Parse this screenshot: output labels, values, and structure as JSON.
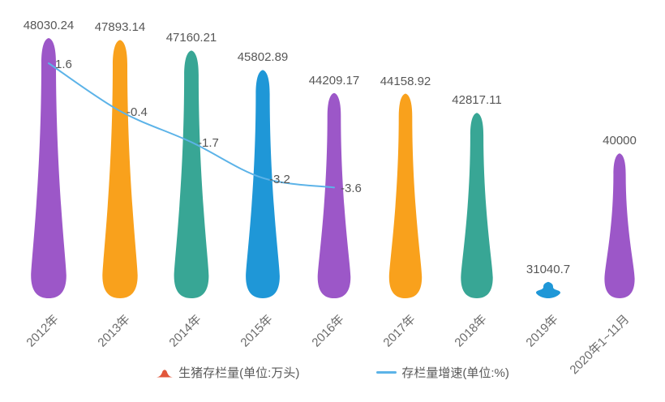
{
  "chart_data": {
    "type": "bar",
    "subtype": "pictorial-teardrop-bar-with-line",
    "title": "",
    "categories": [
      "2012年",
      "2013年",
      "2014年",
      "2015年",
      "2016年",
      "2017年",
      "2018年",
      "2019年",
      "2020年1~11月"
    ],
    "series": [
      {
        "name": "生猪存栏量(单位:万头)",
        "type": "pictorial-bar",
        "unit": "万头",
        "values": [
          48030.24,
          47893.14,
          47160.21,
          45802.89,
          44209.17,
          44158.92,
          42817.11,
          31040.7,
          40000
        ],
        "colors": [
          "#9C57C8",
          "#F9A11C",
          "#38A695",
          "#1F97D7",
          "#9C57C8",
          "#F9A11C",
          "#38A695",
          "#1F97D7",
          "#9C57C8"
        ]
      },
      {
        "name": "存栏量增速(单位:%)",
        "type": "line",
        "unit": "%",
        "x": [
          "2012年",
          "2013年",
          "2014年",
          "2015年",
          "2016年"
        ],
        "values": [
          1.6,
          -0.4,
          -1.7,
          -3.2,
          -3.6
        ],
        "color": "#5CB3E8"
      }
    ],
    "value_labels": [
      "48030.24",
      "47893.14",
      "47160.21",
      "45802.89",
      "44209.17",
      "44158.92",
      "42817.11",
      "31040.7",
      "40000"
    ],
    "growth_labels": [
      "1.6",
      "-0.4",
      "-1.7",
      "-3.2",
      "-3.6"
    ],
    "xlabel": "",
    "ylabel": "",
    "bar_ylim": [
      29900,
      50700
    ],
    "grid": false,
    "legend_position": "bottom"
  },
  "legend": {
    "items": [
      {
        "label": "生猪存栏量(单位:万头)",
        "icon": "mountain-icon",
        "color": "#E2573B"
      },
      {
        "label": "存栏量增速(单位:%)",
        "icon": "line-icon",
        "color": "#5CB3E8"
      }
    ]
  },
  "colors": {
    "value_label": "#575757",
    "axis_label": "#6b6b6b",
    "legend_text": "#5a5a5a",
    "background": "#ffffff"
  }
}
